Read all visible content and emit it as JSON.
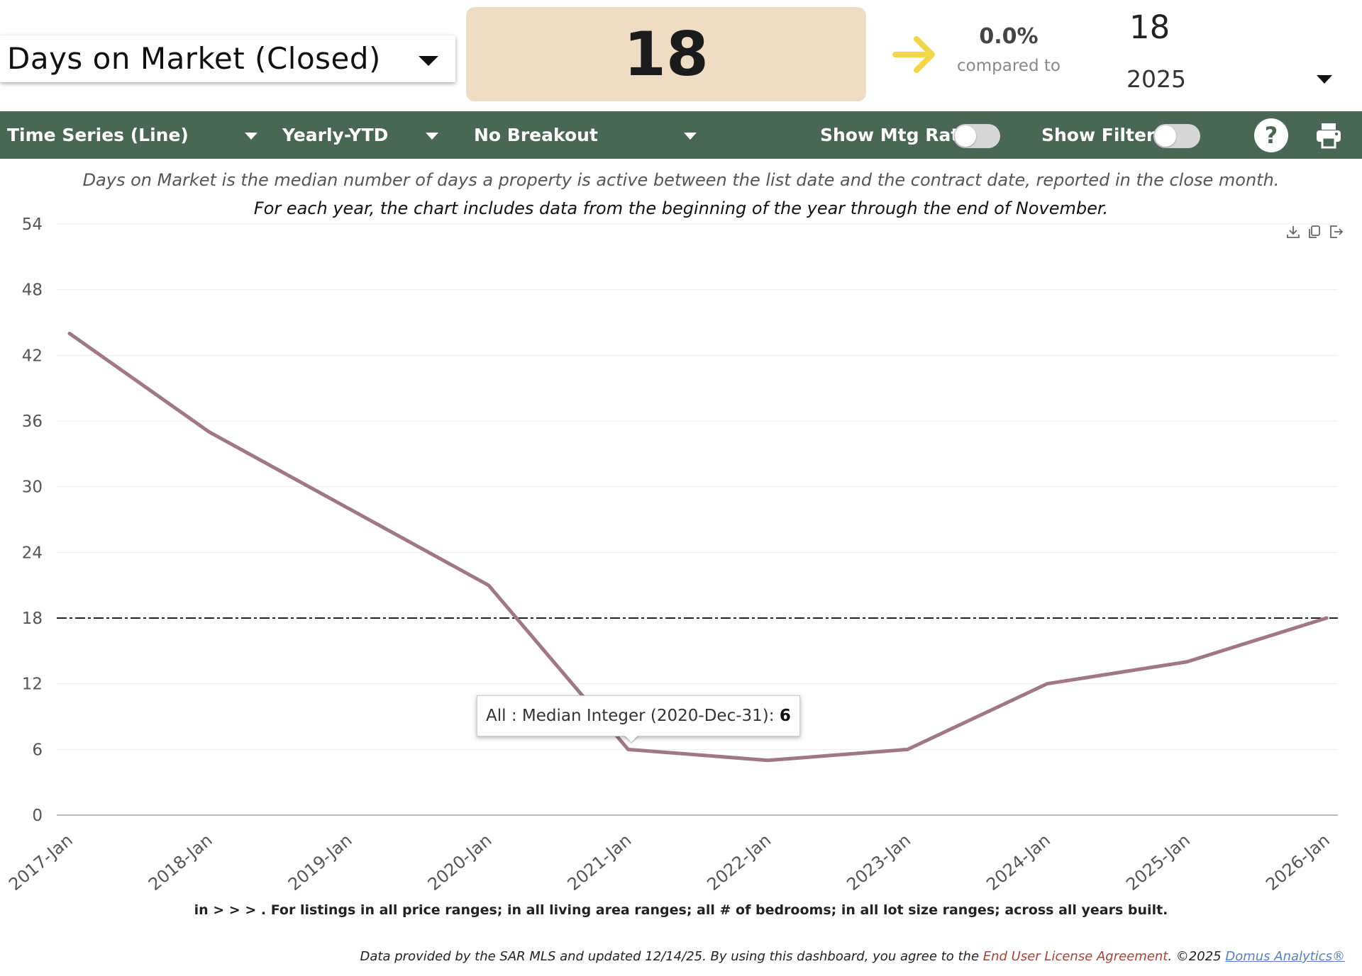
{
  "header": {
    "metric_select": "Days on Market (Closed)",
    "kpi_value": "18",
    "change_pct": "0.0%",
    "compared_label": "compared to",
    "compared_value": "18",
    "compared_year": "2025",
    "trend_color": "#f0d64a"
  },
  "toolbar": {
    "chart_type": "Time Series (Line)",
    "period": "Yearly-YTD",
    "breakout": "No Breakout",
    "show_mtg_rate": "Show Mtg Rate:",
    "show_filters": "Show Filters:",
    "help_label": "?",
    "bg_color": "#4a6657"
  },
  "description": {
    "line1": "Days on Market is the median number of days a property is active between the list date and the contract date, reported in the close month.",
    "line2": "For each year, the chart includes data from the beginning of the year through the end of November."
  },
  "tooltip": {
    "label": "All : Median Integer (2020-Dec-31): ",
    "value": "6"
  },
  "chart_data": {
    "type": "line",
    "categories": [
      "2017-Jan",
      "2018-Jan",
      "2019-Jan",
      "2020-Jan",
      "2021-Jan",
      "2022-Jan",
      "2023-Jan",
      "2024-Jan",
      "2025-Jan",
      "2026-Jan"
    ],
    "series": [
      {
        "values": [
          44,
          35,
          28,
          21,
          6,
          5,
          6,
          12,
          14,
          18
        ],
        "color": "#a07884"
      }
    ],
    "reference_line": {
      "value": 18
    },
    "ylim": [
      0,
      54
    ],
    "yticks": [
      "0",
      "6",
      "12",
      "18",
      "24",
      "30",
      "36",
      "42",
      "48",
      "54"
    ],
    "grid": true,
    "legend": "none"
  },
  "footer": {
    "filter_note": "in > > > . For listings in all price ranges; in all living area ranges; all # of bedrooms; in all lot size ranges; across all years built.",
    "attribution_prefix": "Data provided by the SAR MLS and updated 12/14/25.  By using this dashboard, you agree to the ",
    "eula_link": "End User License Agreement",
    "copyright": ".  ©2025 ",
    "domus_link": "Domus Analytics®"
  }
}
